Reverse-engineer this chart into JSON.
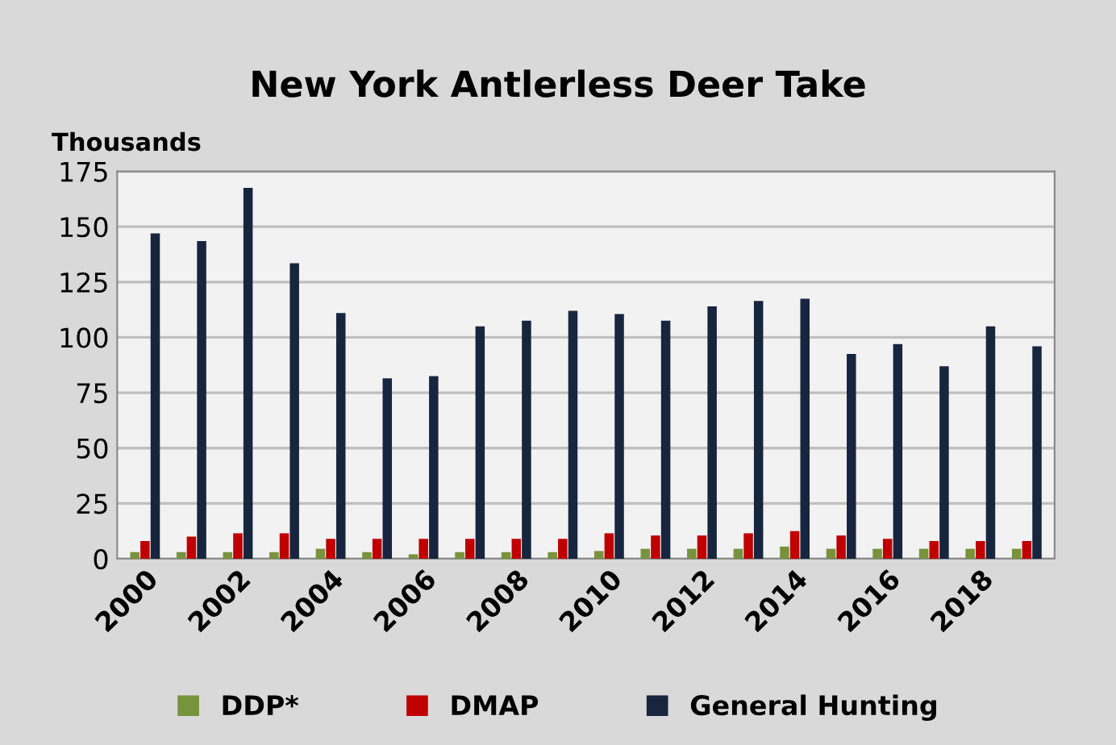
{
  "chart_data": {
    "type": "bar",
    "title": "New York Antlerless Deer Take",
    "ylabel": "Thousands",
    "categories": [
      "2000",
      null,
      "2002",
      null,
      "2004",
      null,
      "2006",
      null,
      "2008",
      null,
      "2010",
      null,
      "2012",
      null,
      "2014",
      null,
      "2016",
      null,
      "2018",
      null
    ],
    "series": [
      {
        "name": "DDP*",
        "color": "#77933c",
        "values": [
          3,
          3,
          3,
          3,
          4.5,
          3,
          2,
          3,
          3,
          3,
          3.5,
          4.5,
          4.5,
          4.5,
          5.5,
          4.5,
          4.5,
          4.5,
          4.5,
          4.5
        ]
      },
      {
        "name": "DMAP",
        "color": "#c00000",
        "values": [
          8,
          10,
          11.5,
          11.5,
          9,
          9,
          9,
          9,
          9,
          9,
          11.5,
          10.5,
          10.5,
          11.5,
          12.5,
          10.5,
          9,
          8,
          8,
          8
        ]
      },
      {
        "name": "General Hunting",
        "color": "#17253f",
        "values": [
          147,
          143.5,
          167.5,
          133.5,
          111,
          81.5,
          82.5,
          105,
          107.5,
          112,
          110.5,
          107.5,
          114,
          116.5,
          117.5,
          92.5,
          97,
          87,
          105,
          96
        ]
      }
    ],
    "ylim": [
      0,
      175
    ],
    "yticks": [
      0,
      25,
      50,
      75,
      100,
      125,
      150,
      175
    ],
    "grid": "y",
    "legend": "bottom"
  }
}
